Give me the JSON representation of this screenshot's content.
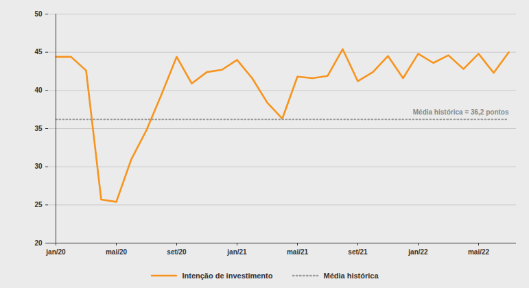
{
  "chart_data": {
    "type": "line",
    "categories": [
      "jan/20",
      null,
      null,
      null,
      "mai/20",
      null,
      null,
      null,
      "set/20",
      null,
      null,
      null,
      "jan/21",
      null,
      null,
      null,
      "mai/21",
      null,
      null,
      null,
      "set/21",
      null,
      null,
      null,
      "jan/22",
      null,
      null,
      null,
      "mai/22",
      null,
      null
    ],
    "series": [
      {
        "name": "Intenção de investimento",
        "color": "#f7941d",
        "line_style": "solid",
        "values": [
          44.4,
          44.4,
          42.6,
          25.7,
          25.4,
          31.0,
          34.8,
          39.5,
          44.4,
          40.9,
          42.4,
          42.7,
          44.0,
          41.6,
          38.4,
          36.3,
          41.8,
          41.6,
          41.9,
          45.4,
          41.2,
          42.4,
          44.5,
          41.6,
          44.8,
          43.6,
          44.6,
          42.8,
          44.8,
          42.3,
          45.0
        ]
      },
      {
        "name": "Média histórica",
        "color": "#9a9a9a",
        "line_style": "dotted",
        "values": [
          36.2,
          36.2,
          36.2,
          36.2,
          36.2,
          36.2,
          36.2,
          36.2,
          36.2,
          36.2,
          36.2,
          36.2,
          36.2,
          36.2,
          36.2,
          36.2,
          36.2,
          36.2,
          36.2,
          36.2,
          36.2,
          36.2,
          36.2,
          36.2,
          36.2,
          36.2,
          36.2,
          36.2,
          36.2,
          36.2,
          36.2
        ]
      }
    ],
    "annotations": [
      {
        "text": "Média histórica = 36,2 pontos",
        "series": "Média histórica"
      }
    ],
    "ylim": [
      20,
      50
    ],
    "yticks": [
      20,
      25,
      30,
      35,
      40,
      45,
      50
    ],
    "grid": true,
    "legend": "bottom"
  }
}
